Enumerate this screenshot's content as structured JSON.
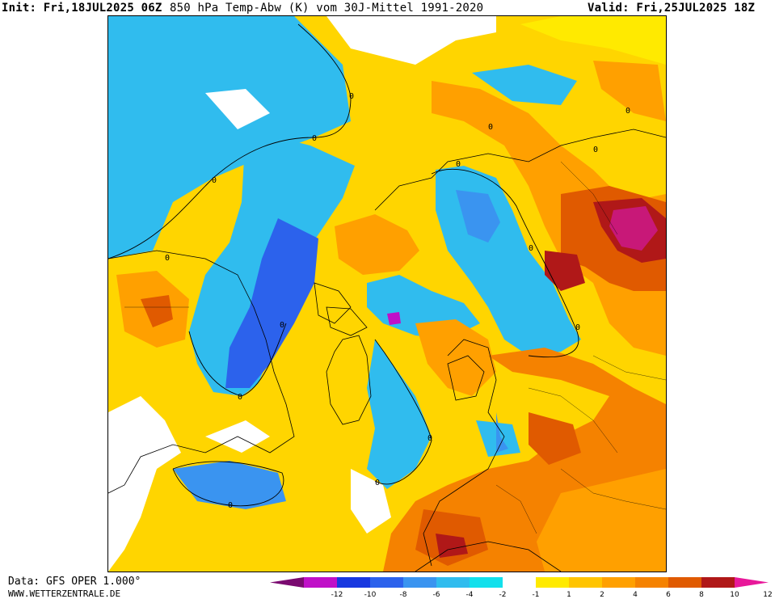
{
  "header": {
    "init": "Init: Fri,18JUL2025 06Z",
    "title": "850 hPa Temp-Abw (K) vom 30J-Mittel 1991-2020",
    "valid": "Valid: Fri,25JUL2025 18Z"
  },
  "footer": {
    "data_source": "Data: GFS OPER 1.000°",
    "website": "WWW.WETTERZENTRALE.DE"
  },
  "legend": {
    "colors": [
      "#7a0a70",
      "#c010c8",
      "#1838e0",
      "#2c62ec",
      "#3a94f0",
      "#30bcee",
      "#12e0ec",
      "#ffffff",
      "#ffea00",
      "#ffc400",
      "#ffa000",
      "#f58200",
      "#e05a00",
      "#b01818",
      "#e8189a"
    ],
    "labels": [
      "-12",
      "-10",
      "-8",
      "-6",
      "-4",
      "-2",
      "-1",
      "1",
      "2",
      "4",
      "6",
      "8",
      "10",
      "12"
    ]
  },
  "map": {
    "projection": "polar stereographic, Northern Hemisphere",
    "contour_labels": [
      "0",
      "0",
      "0",
      "0",
      "0",
      "0",
      "0",
      "0",
      "0",
      "0",
      "0",
      "0",
      "0",
      "0",
      "0"
    ]
  }
}
